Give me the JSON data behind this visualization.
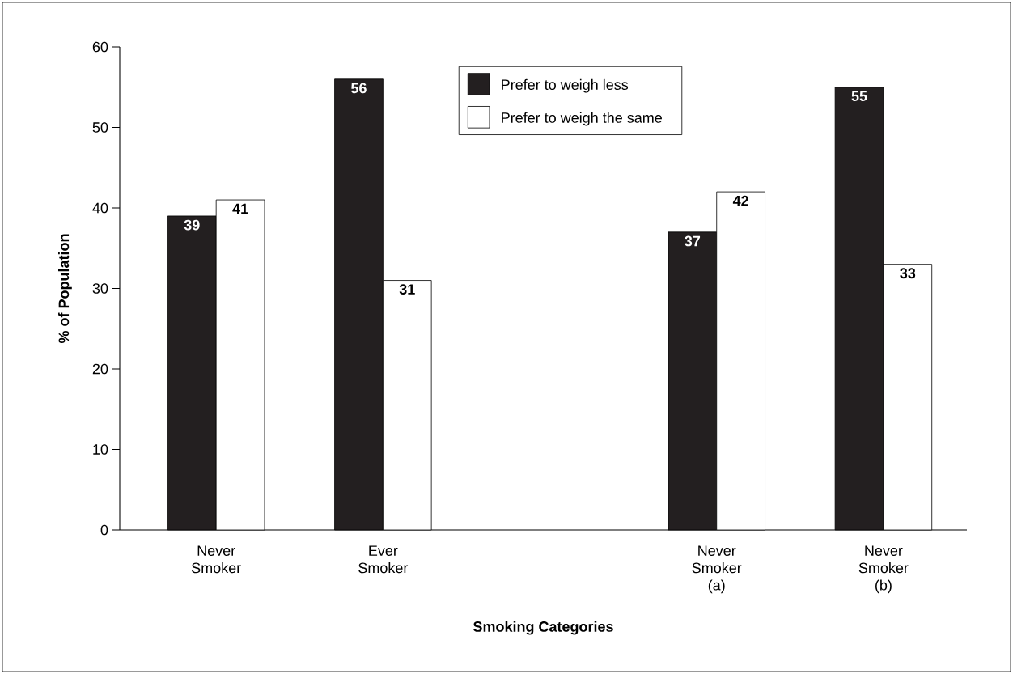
{
  "chart_data": {
    "type": "bar",
    "xlabel": "Smoking Categories",
    "ylabel": "% of Population",
    "categories": [
      "Never Smoker",
      "Ever Smoker",
      null,
      "Never Smoker (a)",
      "Never Smoker (b)"
    ],
    "series": [
      {
        "name": "Prefer to weigh less",
        "color": "#231f20",
        "values": [
          39,
          56,
          null,
          37,
          55
        ]
      },
      {
        "name": "Prefer to weigh the same",
        "color": "#ffffff",
        "values": [
          41,
          31,
          null,
          42,
          33
        ]
      }
    ],
    "ylim": [
      0,
      60
    ],
    "yticks": [
      0,
      10,
      20,
      30,
      40,
      50,
      60
    ],
    "legend": "top",
    "data_labels": true,
    "grid": false
  }
}
